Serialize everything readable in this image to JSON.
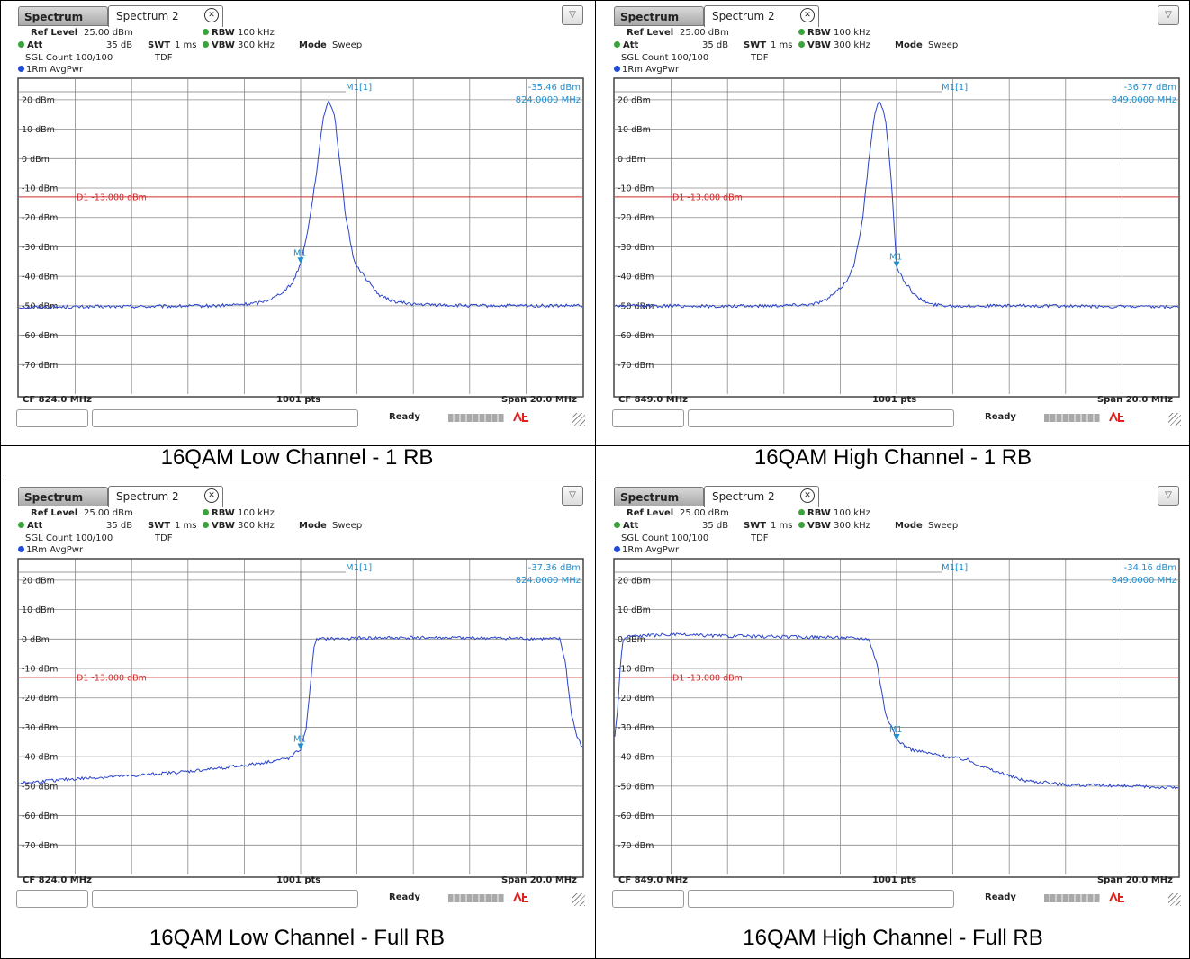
{
  "chart_data": [
    {
      "type": "line",
      "caption": "16QAM Low Channel - 1 RB",
      "tabs": {
        "spectrum": "Spectrum",
        "spectrum2": "Spectrum 2"
      },
      "params": {
        "ref_level_label": "Ref Level",
        "ref_level": "25.00 dBm",
        "att_label": "Att",
        "att": "35 dB",
        "swt_label": "SWT",
        "swt": "1 ms",
        "rbw_label": "RBW",
        "rbw": "100 kHz",
        "vbw_label": "VBW",
        "vbw": "300 kHz",
        "mode_label": "Mode",
        "mode": "Sweep",
        "sgl_count": "SGL Count 100/100",
        "tdf": "TDF"
      },
      "trace_label": "1Rm AvgPwr",
      "y_ticks": [
        "20 dBm",
        "10 dBm",
        "0 dBm",
        "-10 dBm",
        "-20 dBm",
        "-30 dBm",
        "-40 dBm",
        "-50 dBm",
        "-60 dBm",
        "-70 dBm"
      ],
      "ylim": [
        -80,
        27
      ],
      "xlim": [
        814,
        834
      ],
      "limit_line": {
        "label": "D1 -13.000 dBm",
        "value": -13
      },
      "marker": {
        "name": "M1",
        "readout_name": "M1[1]",
        "readout_value": "-35.46 dBm",
        "readout_freq": "824.0000 MHz",
        "x": 824.0,
        "y": -35.46
      },
      "footer": {
        "cf": "CF 824.0 MHz",
        "pts": "1001 pts",
        "span": "Span 20.0 MHz"
      },
      "status": "Ready",
      "x": [
        814.0,
        817.0,
        819.0,
        821.0,
        822.0,
        822.5,
        823.0,
        823.4,
        823.7,
        824.0,
        824.3,
        824.6,
        824.8,
        825.0,
        825.2,
        825.4,
        825.6,
        825.9,
        826.3,
        826.8,
        827.3,
        828.0,
        830.0,
        832.0,
        834.0
      ],
      "y": [
        -50.5,
        -50.3,
        -50.2,
        -50.0,
        -49.5,
        -49.0,
        -47.5,
        -45.0,
        -42.5,
        -35.5,
        -22.0,
        -2.0,
        14.0,
        20.0,
        15.0,
        -2.0,
        -20.0,
        -35.0,
        -40.5,
        -46.5,
        -48.5,
        -49.5,
        -50.0,
        -50.0,
        -50.0
      ]
    },
    {
      "type": "line",
      "caption": "16QAM High Channel - 1 RB",
      "tabs": {
        "spectrum": "Spectrum",
        "spectrum2": "Spectrum 2"
      },
      "params": {
        "ref_level_label": "Ref Level",
        "ref_level": "25.00 dBm",
        "att_label": "Att",
        "att": "35 dB",
        "swt_label": "SWT",
        "swt": "1 ms",
        "rbw_label": "RBW",
        "rbw": "100 kHz",
        "vbw_label": "VBW",
        "vbw": "300 kHz",
        "mode_label": "Mode",
        "mode": "Sweep",
        "sgl_count": "SGL Count 100/100",
        "tdf": "TDF"
      },
      "trace_label": "1Rm AvgPwr",
      "y_ticks": [
        "20 dBm",
        "10 dBm",
        "0 dBm",
        "-10 dBm",
        "-20 dBm",
        "-30 dBm",
        "-40 dBm",
        "-50 dBm",
        "-60 dBm",
        "-70 dBm"
      ],
      "ylim": [
        -80,
        27
      ],
      "xlim": [
        839,
        859
      ],
      "limit_line": {
        "label": "D1 -13.000 dBm",
        "value": -13
      },
      "marker": {
        "name": "M1",
        "readout_name": "M1[1]",
        "readout_value": "-36.77 dBm",
        "readout_freq": "849.0000 MHz",
        "x": 849.0,
        "y": -36.77
      },
      "footer": {
        "cf": "CF 849.0 MHz",
        "pts": "1001 pts",
        "span": "Span 20.0 MHz"
      },
      "status": "Ready",
      "x": [
        839.0,
        841.0,
        843.0,
        845.0,
        846.0,
        846.5,
        846.9,
        847.2,
        847.5,
        847.8,
        848.0,
        848.2,
        848.4,
        848.6,
        848.8,
        849.0,
        849.3,
        849.7,
        850.2,
        851.0,
        852.0,
        854.0,
        856.0,
        859.0
      ],
      "y": [
        -50.0,
        -50.0,
        -50.2,
        -49.8,
        -49.5,
        -48.0,
        -45.0,
        -42.0,
        -36.0,
        -20.0,
        -2.0,
        14.0,
        20.0,
        14.0,
        -5.0,
        -36.8,
        -42.0,
        -47.0,
        -49.5,
        -50.0,
        -50.0,
        -50.0,
        -50.2,
        -50.5
      ]
    },
    {
      "type": "line",
      "caption": "16QAM Low Channel - Full RB",
      "tabs": {
        "spectrum": "Spectrum",
        "spectrum2": "Spectrum 2"
      },
      "params": {
        "ref_level_label": "Ref Level",
        "ref_level": "25.00 dBm",
        "att_label": "Att",
        "att": "35 dB",
        "swt_label": "SWT",
        "swt": "1 ms",
        "rbw_label": "RBW",
        "rbw": "100 kHz",
        "vbw_label": "VBW",
        "vbw": "300 kHz",
        "mode_label": "Mode",
        "mode": "Sweep",
        "sgl_count": "SGL Count 100/100",
        "tdf": "TDF"
      },
      "trace_label": "1Rm AvgPwr",
      "y_ticks": [
        "20 dBm",
        "10 dBm",
        "0 dBm",
        "-10 dBm",
        "-20 dBm",
        "-30 dBm",
        "-40 dBm",
        "-50 dBm",
        "-60 dBm",
        "-70 dBm"
      ],
      "ylim": [
        -80,
        27
      ],
      "xlim": [
        814,
        834
      ],
      "limit_line": {
        "label": "D1 -13.000 dBm",
        "value": -13
      },
      "marker": {
        "name": "M1",
        "readout_name": "M1[1]",
        "readout_value": "-37.36 dBm",
        "readout_freq": "824.0000 MHz",
        "x": 824.0,
        "y": -37.36
      },
      "footer": {
        "cf": "CF 824.0 MHz",
        "pts": "1001 pts",
        "span": "Span 20.0 MHz"
      },
      "status": "Ready",
      "x": [
        814.0,
        816.0,
        818.0,
        820.0,
        822.0,
        823.0,
        823.6,
        824.0,
        824.2,
        824.4,
        824.5,
        824.6,
        826.0,
        828.0,
        830.0,
        832.0,
        833.2,
        833.4,
        833.6,
        833.8,
        834.0
      ],
      "y": [
        -49.0,
        -47.5,
        -46.5,
        -45.0,
        -43.0,
        -41.5,
        -40.5,
        -37.4,
        -30.0,
        -10.0,
        -1.0,
        0.0,
        0.3,
        0.5,
        0.4,
        0.2,
        0.0,
        -8.0,
        -25.0,
        -33.0,
        -37.0
      ]
    },
    {
      "type": "line",
      "caption": "16QAM High Channel - Full RB",
      "tabs": {
        "spectrum": "Spectrum",
        "spectrum2": "Spectrum 2"
      },
      "params": {
        "ref_level_label": "Ref Level",
        "ref_level": "25.00 dBm",
        "att_label": "Att",
        "att": "35 dB",
        "swt_label": "SWT",
        "swt": "1 ms",
        "rbw_label": "RBW",
        "rbw": "100 kHz",
        "vbw_label": "VBW",
        "vbw": "300 kHz",
        "mode_label": "Mode",
        "mode": "Sweep",
        "sgl_count": "SGL Count 100/100",
        "tdf": "TDF"
      },
      "trace_label": "1Rm AvgPwr",
      "y_ticks": [
        "20 dBm",
        "10 dBm",
        "0 dBm",
        "-10 dBm",
        "-20 dBm",
        "-30 dBm",
        "-40 dBm",
        "-50 dBm",
        "-60 dBm",
        "-70 dBm"
      ],
      "ylim": [
        -80,
        27
      ],
      "xlim": [
        839,
        859
      ],
      "limit_line": {
        "label": "D1 -13.000 dBm",
        "value": -13
      },
      "marker": {
        "name": "M1",
        "readout_name": "M1[1]",
        "readout_value": "-34.16 dBm",
        "readout_freq": "849.0000 MHz",
        "x": 849.0,
        "y": -34.16
      },
      "footer": {
        "cf": "CF 849.0 MHz",
        "pts": "1001 pts",
        "span": "Span 20.0 MHz"
      },
      "status": "Ready",
      "x": [
        839.0,
        839.1,
        839.2,
        839.3,
        839.5,
        841.0,
        843.0,
        845.0,
        847.0,
        848.0,
        848.3,
        848.6,
        849.0,
        849.5,
        850.5,
        851.5,
        852.5,
        853.5,
        855.0,
        857.0,
        859.0
      ],
      "y": [
        -33.0,
        -24.0,
        -8.0,
        0.0,
        1.0,
        1.5,
        1.0,
        0.8,
        0.5,
        0.2,
        -8.0,
        -25.0,
        -34.2,
        -37.5,
        -39.5,
        -41.0,
        -45.0,
        -48.0,
        -49.5,
        -50.0,
        -50.5
      ]
    }
  ]
}
